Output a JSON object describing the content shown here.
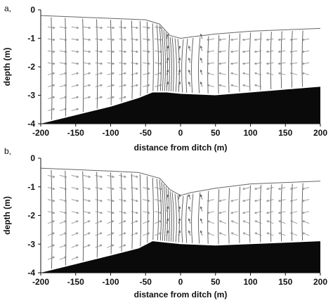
{
  "figure": {
    "type": "cross-section flow field (velocity vectors and hydraulic head contours)",
    "x_axis": {
      "label": "distance from ditch (m)",
      "ticks": [
        -200,
        -150,
        -100,
        -50,
        0,
        50,
        100,
        150,
        200
      ],
      "range": [
        -200,
        200
      ]
    },
    "y_axis": {
      "label": "depth (m)",
      "ticks": [
        0,
        -1,
        -2,
        -3,
        -4
      ],
      "range": [
        -4,
        0
      ]
    },
    "panels": [
      {
        "letter": "a,",
        "surface": [
          [
            -200,
            -0.2
          ],
          [
            -150,
            -0.25
          ],
          [
            -100,
            -0.3
          ],
          [
            -50,
            -0.35
          ],
          [
            -30,
            -0.5
          ],
          [
            -15,
            -0.9
          ],
          [
            0,
            -1.0
          ],
          [
            15,
            -0.95
          ],
          [
            50,
            -0.85
          ],
          [
            100,
            -0.75
          ],
          [
            150,
            -0.7
          ],
          [
            200,
            -0.65
          ]
        ],
        "bedrock_top": [
          [
            -200,
            -4.0
          ],
          [
            -150,
            -3.7
          ],
          [
            -100,
            -3.4
          ],
          [
            -60,
            -3.1
          ],
          [
            -40,
            -2.9
          ],
          [
            -20,
            -2.9
          ],
          [
            0,
            -2.95
          ],
          [
            50,
            -3.0
          ],
          [
            100,
            -2.9
          ],
          [
            150,
            -2.8
          ],
          [
            200,
            -2.7
          ]
        ]
      },
      {
        "letter": "b,",
        "surface": [
          [
            -200,
            -0.35
          ],
          [
            -150,
            -0.4
          ],
          [
            -100,
            -0.45
          ],
          [
            -60,
            -0.5
          ],
          [
            -30,
            -0.7
          ],
          [
            -15,
            -1.1
          ],
          [
            0,
            -1.3
          ],
          [
            15,
            -1.2
          ],
          [
            50,
            -1.05
          ],
          [
            100,
            -0.9
          ],
          [
            150,
            -0.85
          ],
          [
            200,
            -0.8
          ]
        ],
        "bedrock_top": [
          [
            -200,
            -4.0
          ],
          [
            -150,
            -3.7
          ],
          [
            -100,
            -3.4
          ],
          [
            -60,
            -3.15
          ],
          [
            -40,
            -2.9
          ],
          [
            -20,
            -2.95
          ],
          [
            0,
            -3.0
          ],
          [
            50,
            -3.05
          ],
          [
            100,
            -3.0
          ],
          [
            150,
            -2.95
          ],
          [
            200,
            -2.9
          ]
        ]
      }
    ],
    "colors": {
      "vectors": "#8a8a8a",
      "contours": "#555555",
      "bedrock": "#0a0a0a",
      "text": "#111111"
    }
  }
}
